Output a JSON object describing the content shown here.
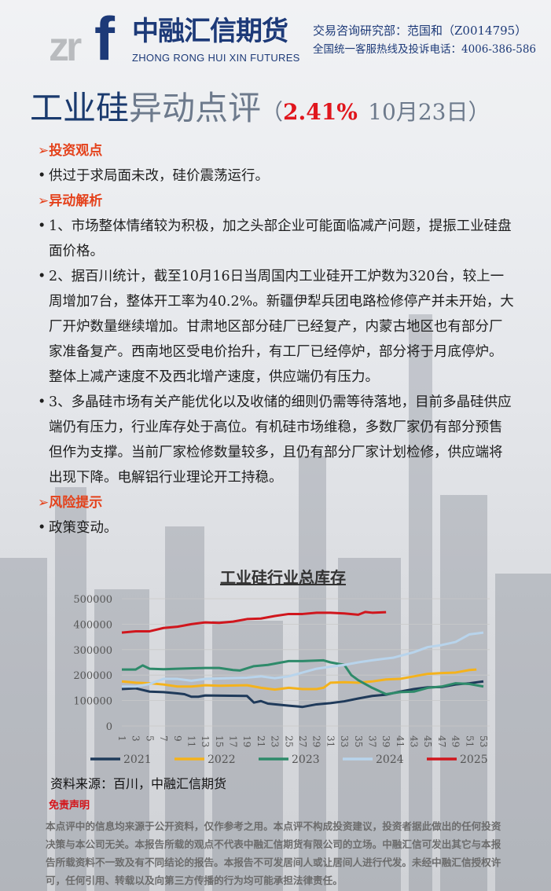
{
  "header": {
    "logo_mark": "zrf",
    "logo_cn": "中融汇信期货",
    "logo_en": "ZHONG RONG HUI XIN FUTURES",
    "analyst": "交易咨询研究部：范国和（Z0014795）",
    "hotline": "全国统一客服热线及投诉电话：4006-386-586"
  },
  "title": {
    "part1": "工业硅",
    "part2": "异动点评",
    "open": "（",
    "change": "2.41%",
    "date": "10月23日",
    "close": "）"
  },
  "sections": {
    "view_heading": "➢投资观点",
    "view_text": "供过于求局面未改，硅价震荡运行。",
    "analysis_heading": "➢异动解析",
    "analysis_items": [
      "1、市场整体情绪较为积极，加之头部企业可能面临减产问题，提振工业硅盘面价格。",
      "2、据百川统计，截至10月16日当周国内工业硅开工炉数为320台，较上一周增加7台，整体开工率为40.2%。新疆伊犁兵团电路检修停产并未开始，大厂开炉数量继续增加。甘肃地区部分硅厂已经复产，内蒙古地区也有部分厂家准备复产。西南地区受电价抬升，有工厂已经停炉，部分将于月底停炉。整体上减产速度不及西北增产速度，供应端仍有压力。",
      "3、多晶硅市场有关产能优化以及收储的细则仍需等待落地，目前多晶硅供应端仍有压力，行业库存处于高位。有机硅市场维稳，多数厂家仍有部分预售但作为支撑。当前厂家检修数量较多，且仍有部分厂家计划检修，供应端将出现下降。电解铝行业理论开工持稳。"
    ],
    "risk_heading": "➢风险提示",
    "risk_text": "政策变动。"
  },
  "chart_data": {
    "type": "line",
    "title": "工业硅行业总库存",
    "xlabel": "",
    "ylabel": "",
    "x_ticks": [
      "1",
      "3",
      "5",
      "7",
      "9",
      "11",
      "13",
      "15",
      "17",
      "19",
      "21",
      "23",
      "25",
      "27",
      "29",
      "31",
      "33",
      "35",
      "37",
      "39",
      "41",
      "43",
      "45",
      "47",
      "49",
      "51",
      "53"
    ],
    "xlim": [
      1,
      53
    ],
    "ylim": [
      0,
      500000
    ],
    "y_ticks": [
      "0",
      "100000",
      "200000",
      "300000",
      "400000",
      "500000"
    ],
    "grid": true,
    "legend_position": "bottom",
    "series": [
      {
        "name": "2021",
        "color": "#1f3a5a",
        "points": [
          [
            1,
            145000
          ],
          [
            3,
            148000
          ],
          [
            5,
            135000
          ],
          [
            7,
            133000
          ],
          [
            9,
            128000
          ],
          [
            10,
            125000
          ],
          [
            11,
            115000
          ],
          [
            12,
            115000
          ],
          [
            13,
            120000
          ],
          [
            19,
            118000
          ],
          [
            20,
            92000
          ],
          [
            21,
            98000
          ],
          [
            22,
            88000
          ],
          [
            25,
            80000
          ],
          [
            27,
            75000
          ],
          [
            29,
            85000
          ],
          [
            31,
            90000
          ],
          [
            33,
            97000
          ],
          [
            35,
            108000
          ],
          [
            37,
            118000
          ],
          [
            39,
            123000
          ],
          [
            41,
            135000
          ],
          [
            43,
            145000
          ],
          [
            45,
            152000
          ],
          [
            47,
            153000
          ],
          [
            49,
            163000
          ],
          [
            51,
            168000
          ],
          [
            53,
            175000
          ]
        ]
      },
      {
        "name": "2022",
        "color": "#f4b21c",
        "points": [
          [
            1,
            175000
          ],
          [
            3,
            170000
          ],
          [
            5,
            168000
          ],
          [
            7,
            163000
          ],
          [
            9,
            155000
          ],
          [
            11,
            155000
          ],
          [
            13,
            160000
          ],
          [
            15,
            158000
          ],
          [
            19,
            160000
          ],
          [
            21,
            150000
          ],
          [
            23,
            143000
          ],
          [
            25,
            150000
          ],
          [
            27,
            145000
          ],
          [
            29,
            145000
          ],
          [
            30,
            150000
          ],
          [
            31,
            170000
          ],
          [
            33,
            172000
          ],
          [
            35,
            170000
          ],
          [
            37,
            175000
          ],
          [
            39,
            183000
          ],
          [
            41,
            185000
          ],
          [
            43,
            195000
          ],
          [
            45,
            205000
          ],
          [
            47,
            208000
          ],
          [
            49,
            210000
          ],
          [
            51,
            220000
          ],
          [
            52,
            222000
          ]
        ]
      },
      {
        "name": "2023",
        "color": "#2e8a6a",
        "points": [
          [
            1,
            222000
          ],
          [
            3,
            222000
          ],
          [
            4,
            238000
          ],
          [
            5,
            225000
          ],
          [
            7,
            223000
          ],
          [
            9,
            225000
          ],
          [
            13,
            228000
          ],
          [
            15,
            228000
          ],
          [
            17,
            220000
          ],
          [
            18,
            218000
          ],
          [
            20,
            235000
          ],
          [
            22,
            240000
          ],
          [
            25,
            255000
          ],
          [
            27,
            255000
          ],
          [
            30,
            258000
          ],
          [
            31,
            250000
          ],
          [
            33,
            240000
          ],
          [
            34,
            200000
          ],
          [
            35,
            180000
          ],
          [
            37,
            150000
          ],
          [
            39,
            125000
          ],
          [
            41,
            133000
          ],
          [
            43,
            135000
          ],
          [
            45,
            150000
          ],
          [
            47,
            155000
          ],
          [
            49,
            168000
          ],
          [
            51,
            165000
          ],
          [
            53,
            155000
          ]
        ]
      },
      {
        "name": "2024",
        "color": "#b8d4ec",
        "points": [
          [
            1,
            155000
          ],
          [
            3,
            155000
          ],
          [
            5,
            165000
          ],
          [
            7,
            185000
          ],
          [
            9,
            185000
          ],
          [
            11,
            178000
          ],
          [
            13,
            185000
          ],
          [
            19,
            190000
          ],
          [
            21,
            195000
          ],
          [
            23,
            188000
          ],
          [
            25,
            195000
          ],
          [
            27,
            210000
          ],
          [
            29,
            225000
          ],
          [
            31,
            233000
          ],
          [
            33,
            240000
          ],
          [
            35,
            250000
          ],
          [
            37,
            258000
          ],
          [
            39,
            265000
          ],
          [
            40,
            268000
          ],
          [
            43,
            290000
          ],
          [
            45,
            310000
          ],
          [
            47,
            318000
          ],
          [
            49,
            330000
          ],
          [
            51,
            360000
          ],
          [
            53,
            367000
          ]
        ]
      },
      {
        "name": "2025",
        "color": "#d0161d",
        "points": [
          [
            1,
            367000
          ],
          [
            3,
            372000
          ],
          [
            5,
            372000
          ],
          [
            7,
            385000
          ],
          [
            9,
            390000
          ],
          [
            11,
            400000
          ],
          [
            13,
            407000
          ],
          [
            15,
            405000
          ],
          [
            17,
            410000
          ],
          [
            19,
            420000
          ],
          [
            21,
            422000
          ],
          [
            23,
            432000
          ],
          [
            25,
            440000
          ],
          [
            27,
            440000
          ],
          [
            29,
            445000
          ],
          [
            31,
            445000
          ],
          [
            33,
            442000
          ],
          [
            35,
            437000
          ],
          [
            36,
            448000
          ],
          [
            37,
            445000
          ],
          [
            39,
            447000
          ]
        ]
      }
    ]
  },
  "footer": {
    "source": "资料来源：百川，中融汇信期货",
    "disclaimer_title": "免责声明",
    "disclaimer_text": "本点评中的信息均来源于公开资料，仅作参考之用。本点评不构成投资建议，投资者据此做出的任何投资决策与本公司无关。本报告所载的观点不代表中融汇信期货有限公司的立场。中融汇信可发出其它与本报告所载资料不一致及有不同结论的报告。本报告不可发居间人或让居间人进行代发。未经中融汇信授权许可，任何引用、转载以及向第三方传播的行为均可能承担法律责任。"
  }
}
